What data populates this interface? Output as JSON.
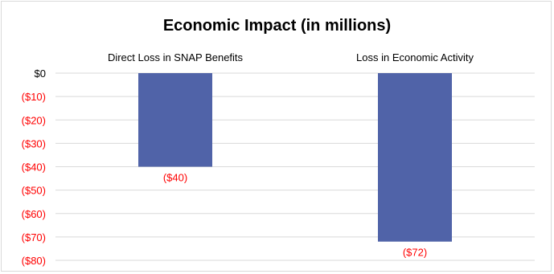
{
  "chart_data": {
    "type": "bar",
    "title": "Economic Impact (in millions)",
    "categories": [
      "Direct Loss in SNAP Benefits",
      "Loss in Economic Activity"
    ],
    "values": [
      -40,
      -72
    ],
    "data_labels": [
      "($40)",
      "($72)"
    ],
    "xlabel": "",
    "ylabel": "",
    "ylim": [
      -80,
      0
    ],
    "y_ticks": [
      0,
      -10,
      -20,
      -30,
      -40,
      -50,
      -60,
      -70,
      -80
    ],
    "y_tick_labels": [
      "$0",
      "($10)",
      "($20)",
      "($30)",
      "($40)",
      "($50)",
      "($60)",
      "($70)",
      "($80)"
    ],
    "category_axis_position": "top",
    "grid": true,
    "legend": "none",
    "colors": {
      "bar": "#5063a8",
      "negative_text": "#ff0000",
      "positive_text": "#000000",
      "grid": "#d9d9d9"
    }
  }
}
